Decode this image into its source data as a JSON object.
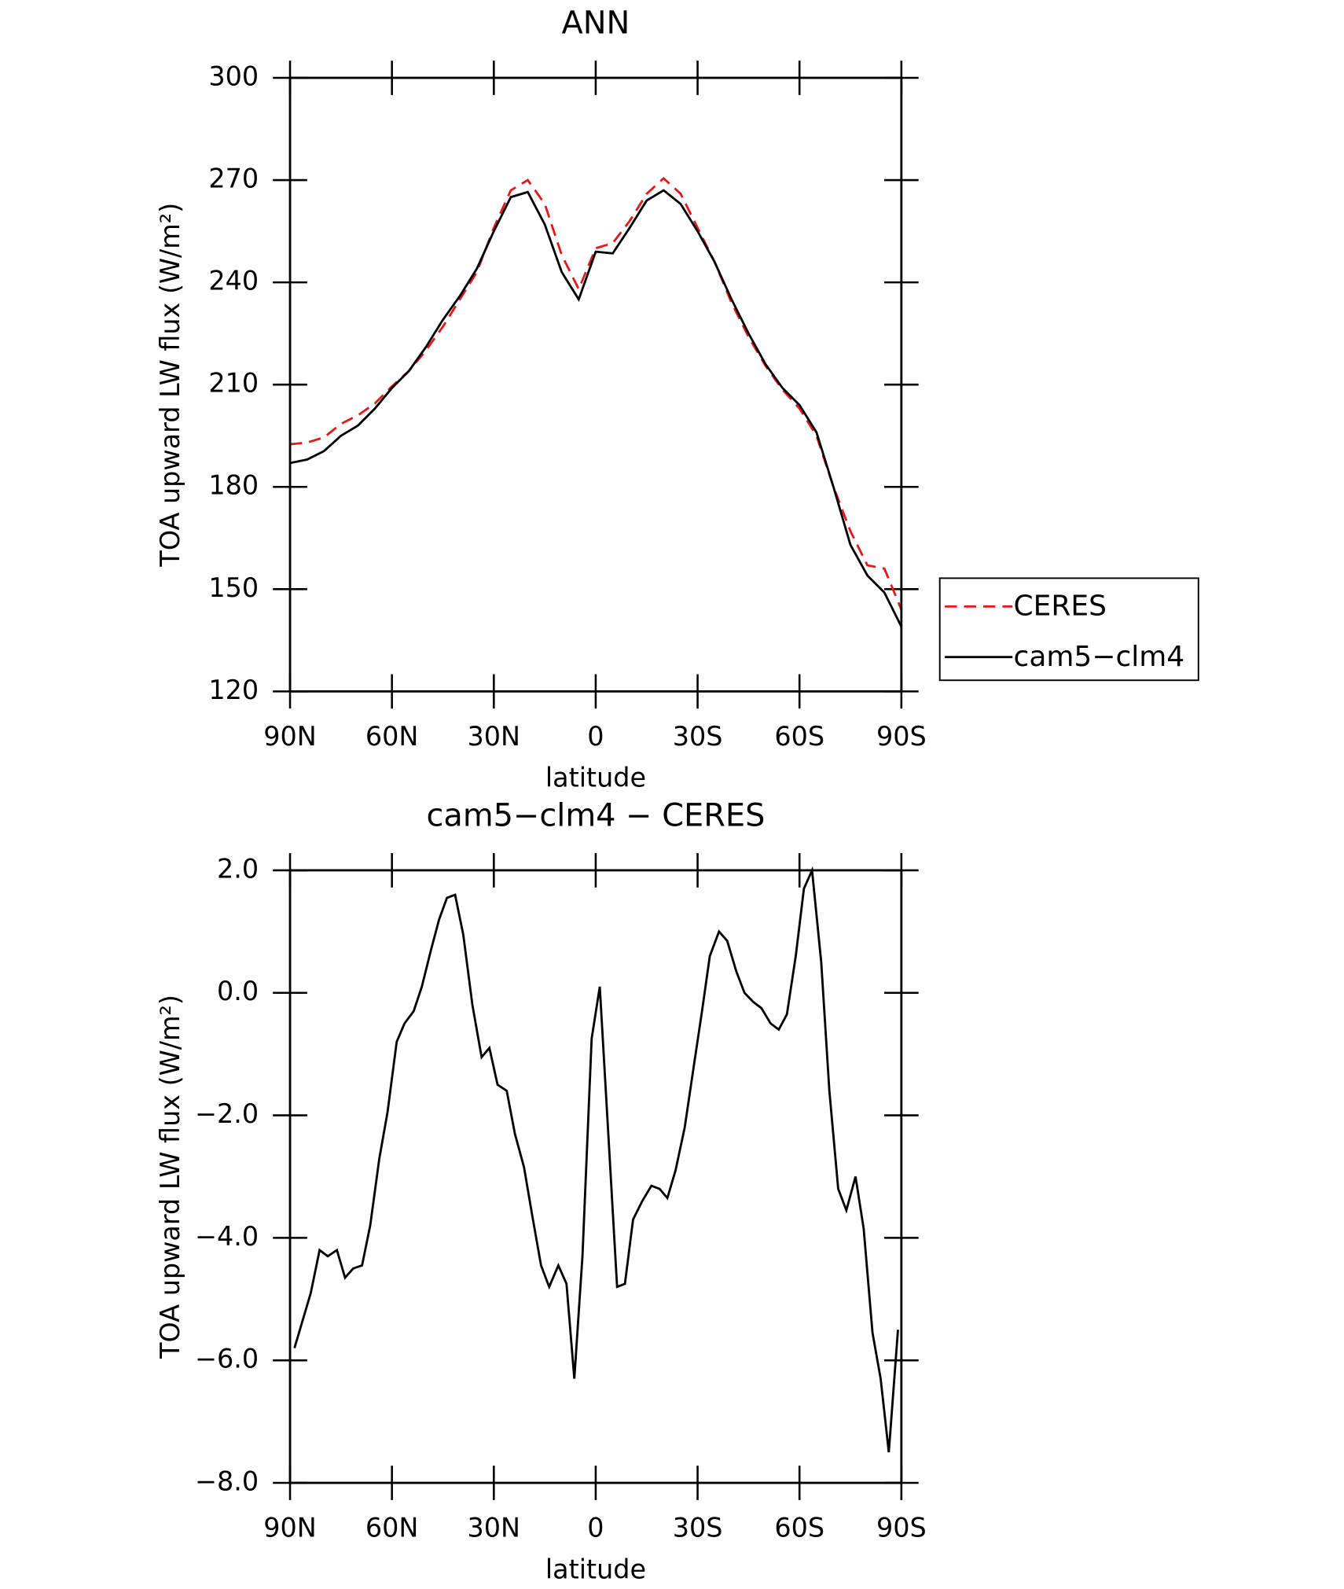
{
  "chart_data": [
    {
      "type": "line",
      "title": "ANN",
      "x_label": "latitude",
      "y_label": "TOA upward LW flux (W/m²)",
      "x": [
        90,
        85,
        80,
        75,
        70,
        65,
        60,
        55,
        50,
        45,
        40,
        35,
        30,
        25,
        20,
        15,
        10,
        5,
        0,
        -5,
        -10,
        -15,
        -20,
        -25,
        -30,
        -35,
        -40,
        -45,
        -50,
        -55,
        -60,
        -65,
        -70,
        -75,
        -80,
        -85,
        -90
      ],
      "series": [
        {
          "name": "CERES",
          "color": "#e31a1c",
          "dash": "dashed",
          "values": [
            192.5,
            193,
            194.5,
            198.5,
            201,
            204.5,
            209.5,
            214,
            220,
            227,
            235,
            243,
            256,
            267,
            270,
            263,
            248,
            238,
            250,
            251.5,
            258,
            266,
            270.5,
            266,
            256,
            246,
            234,
            224,
            215.5,
            208.5,
            203,
            195,
            180,
            167,
            157,
            156,
            144
          ]
        },
        {
          "name": "cam5−clm4",
          "color": "#000000",
          "dash": "solid",
          "values": [
            187,
            188,
            190.5,
            195,
            198,
            203,
            209,
            214,
            221,
            229,
            236,
            244,
            255,
            265,
            266.5,
            257,
            243,
            235,
            249,
            248.5,
            256,
            264,
            267,
            263,
            255,
            246,
            235,
            225,
            216,
            209,
            204,
            196,
            180,
            163,
            154,
            149,
            139
          ]
        }
      ],
      "xlim": [
        90,
        -90
      ],
      "xticks": [
        {
          "value": 90,
          "label": "90N"
        },
        {
          "value": 60,
          "label": "60N"
        },
        {
          "value": 30,
          "label": "30N"
        },
        0,
        {
          "value": -30,
          "label": "30S"
        },
        {
          "value": -60,
          "label": "60S"
        },
        {
          "value": -90,
          "label": "90S"
        }
      ],
      "ylim": [
        120,
        300
      ],
      "yticks": [
        120,
        150,
        180,
        210,
        240,
        270,
        300
      ],
      "legend": "right"
    },
    {
      "type": "line",
      "title": "cam5−clm4 − CERES",
      "x_label": "latitude",
      "y_label": "TOA upward LW flux (W/m²)",
      "x": [
        88.7,
        83.9,
        81.3,
        78.9,
        76.2,
        73.8,
        71.4,
        68.8,
        66.4,
        63.7,
        61.3,
        58.6,
        56.3,
        53.6,
        51.2,
        48.5,
        46.1,
        43.8,
        41.4,
        39.0,
        36.3,
        33.6,
        31.3,
        28.9,
        26.2,
        23.8,
        21.1,
        18.8,
        16.1,
        13.7,
        11.0,
        8.6,
        6.3,
        3.9,
        1.2,
        -1.2,
        -3.6,
        -6.3,
        -8.6,
        -11.0,
        -13.7,
        -16.4,
        -18.8,
        -21.1,
        -23.5,
        -26.2,
        -28.6,
        -31.3,
        -33.6,
        -36.3,
        -38.7,
        -41.4,
        -43.8,
        -46.4,
        -48.8,
        -51.5,
        -53.9,
        -56.3,
        -58.9,
        -61.3,
        -63.7,
        -66.4,
        -68.8,
        -71.4,
        -73.8,
        -76.5,
        -78.9,
        -81.5,
        -83.9,
        -86.3,
        -89.0
      ],
      "series": [
        {
          "color": "#000000",
          "dash": "solid",
          "values": [
            -5.8,
            -4.9,
            -4.2,
            -4.3,
            -4.2,
            -4.65,
            -4.5,
            -4.45,
            -3.8,
            -2.7,
            -1.95,
            -0.8,
            -0.5,
            -0.3,
            0.1,
            0.7,
            1.2,
            1.55,
            1.6,
            0.95,
            -0.2,
            -1.05,
            -0.9,
            -1.5,
            -1.6,
            -2.3,
            -2.85,
            -3.6,
            -4.45,
            -4.8,
            -4.45,
            -4.75,
            -6.3,
            -4.3,
            -0.75,
            0.1,
            -2.2,
            -4.8,
            -4.75,
            -3.7,
            -3.4,
            -3.15,
            -3.2,
            -3.35,
            -2.9,
            -2.2,
            -1.3,
            -0.3,
            0.6,
            1.0,
            0.85,
            0.35,
            0,
            -0.15,
            -0.25,
            -0.5,
            -0.6,
            -0.35,
            0.6,
            1.7,
            2.0,
            0.5,
            -1.6,
            -3.2,
            -3.55,
            -3.0,
            -3.85,
            -5.55,
            -6.3,
            -7.5,
            -5.5
          ]
        }
      ],
      "xlim": [
        90,
        -90
      ],
      "xticks": [
        {
          "value": 90,
          "label": "90N"
        },
        {
          "value": 60,
          "label": "60N"
        },
        {
          "value": 30,
          "label": "30N"
        },
        0,
        {
          "value": -30,
          "label": "30S"
        },
        {
          "value": -60,
          "label": "60S"
        },
        {
          "value": -90,
          "label": "90S"
        }
      ],
      "ylim": [
        -8,
        2
      ],
      "yticks": [
        {
          "value": -8,
          "label": "−8.0"
        },
        {
          "value": -6,
          "label": "−6.0"
        },
        {
          "value": -4,
          "label": "−4.0"
        },
        {
          "value": -2,
          "label": "−2.0"
        },
        {
          "value": 0,
          "label": "0.0"
        },
        {
          "value": 2,
          "label": "2.0"
        }
      ]
    }
  ]
}
